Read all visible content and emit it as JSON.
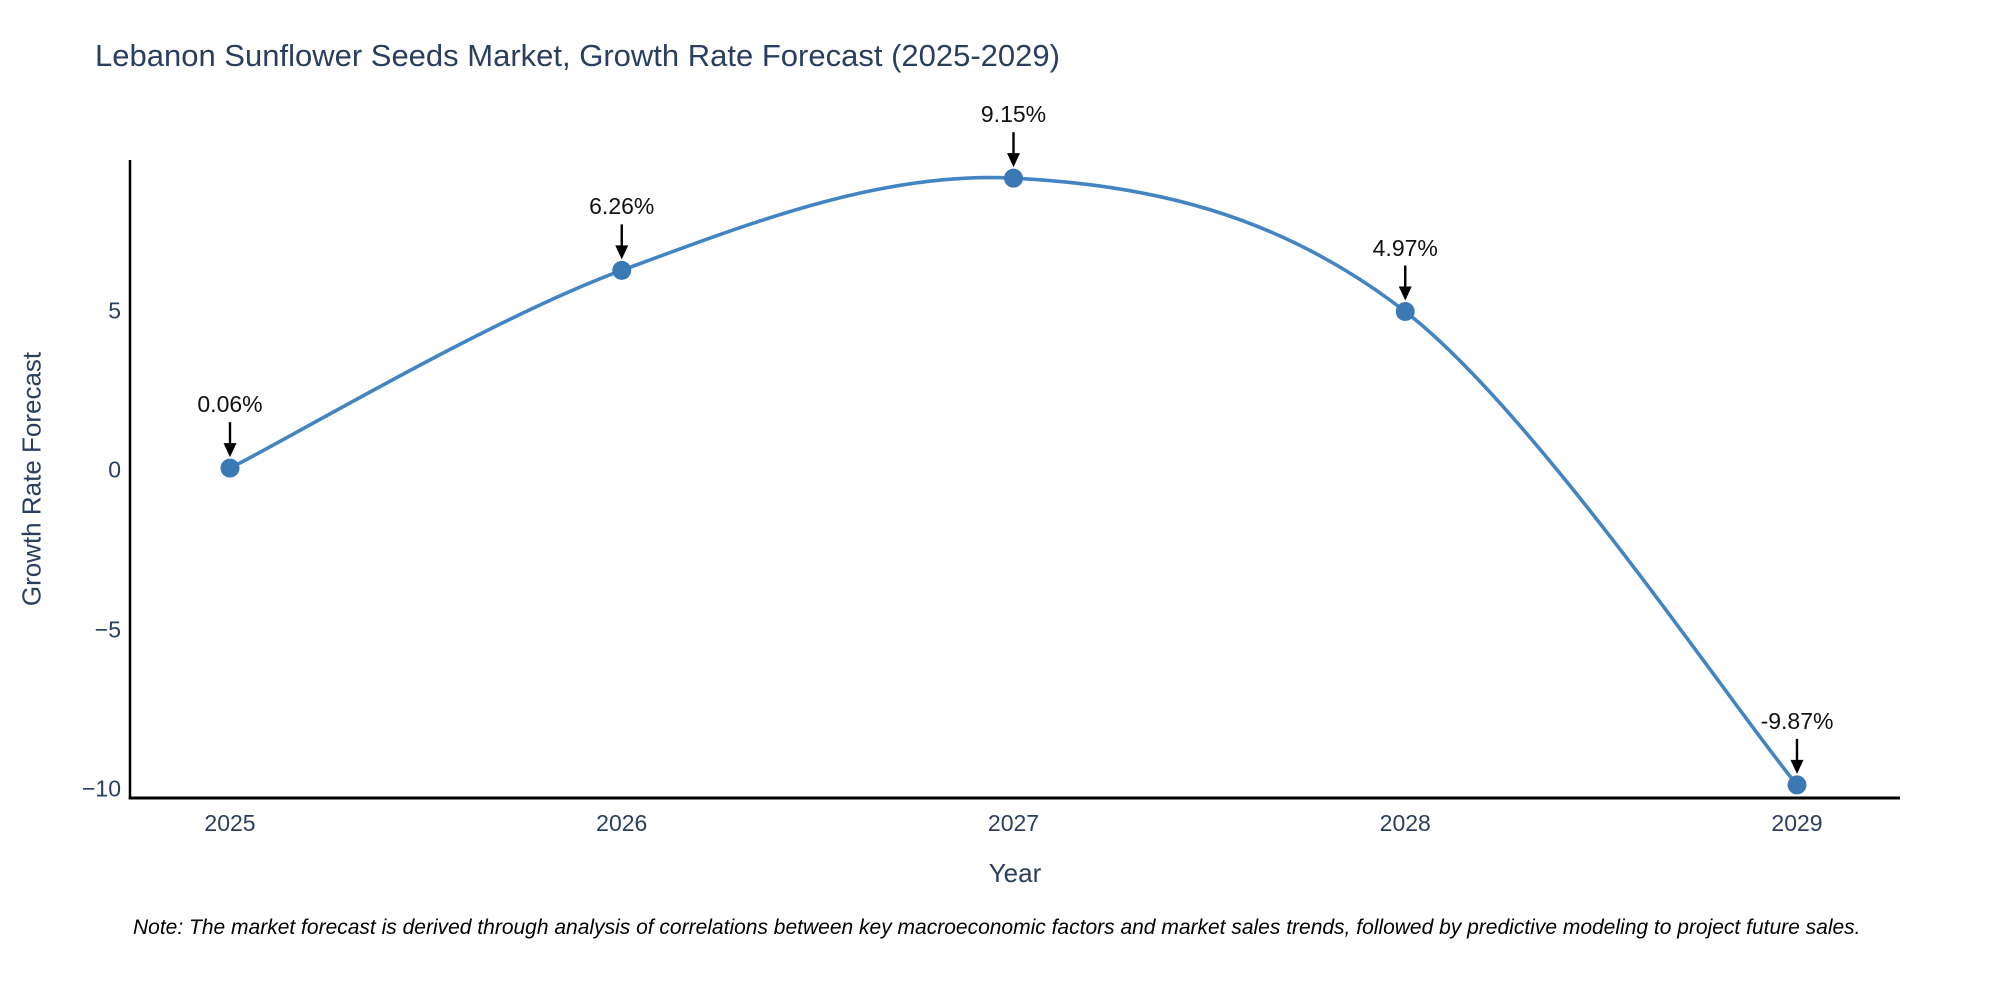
{
  "title": "Lebanon Sunflower Seeds Market, Growth Rate Forecast (2025-2029)",
  "note": "Note: The market forecast is derived through analysis of correlations between key macroeconomic factors and market sales trends, followed by predictive modeling to project future sales.",
  "chart_data": {
    "type": "line",
    "line_shape": "spline",
    "title": "Lebanon Sunflower Seeds Market, Growth Rate Forecast (2025-2029)",
    "xlabel": "Year",
    "ylabel": "Growth Rate Forecast",
    "x": [
      2025,
      2026,
      2027,
      2028,
      2029
    ],
    "values": [
      0.06,
      6.26,
      9.15,
      4.97,
      -9.87
    ],
    "point_labels": [
      "0.06%",
      "6.26%",
      "9.15%",
      "4.97%",
      "-9.87%"
    ],
    "xtick_labels": [
      "2025",
      "2026",
      "2027",
      "2028",
      "2029"
    ],
    "yticks": [
      5,
      0,
      -5,
      -10
    ],
    "ytick_labels": [
      "5",
      "0",
      "−5",
      "−10"
    ],
    "ylim": [
      -10.28,
      9.72
    ],
    "grid": false,
    "legend": "none",
    "colors": {
      "line": "#4285c2",
      "marker": "#3b79b5",
      "annotation_arrow": "#000000",
      "annotation_text": "#111111",
      "axis_line": "#000000",
      "text": "#2a3f5f"
    }
  }
}
